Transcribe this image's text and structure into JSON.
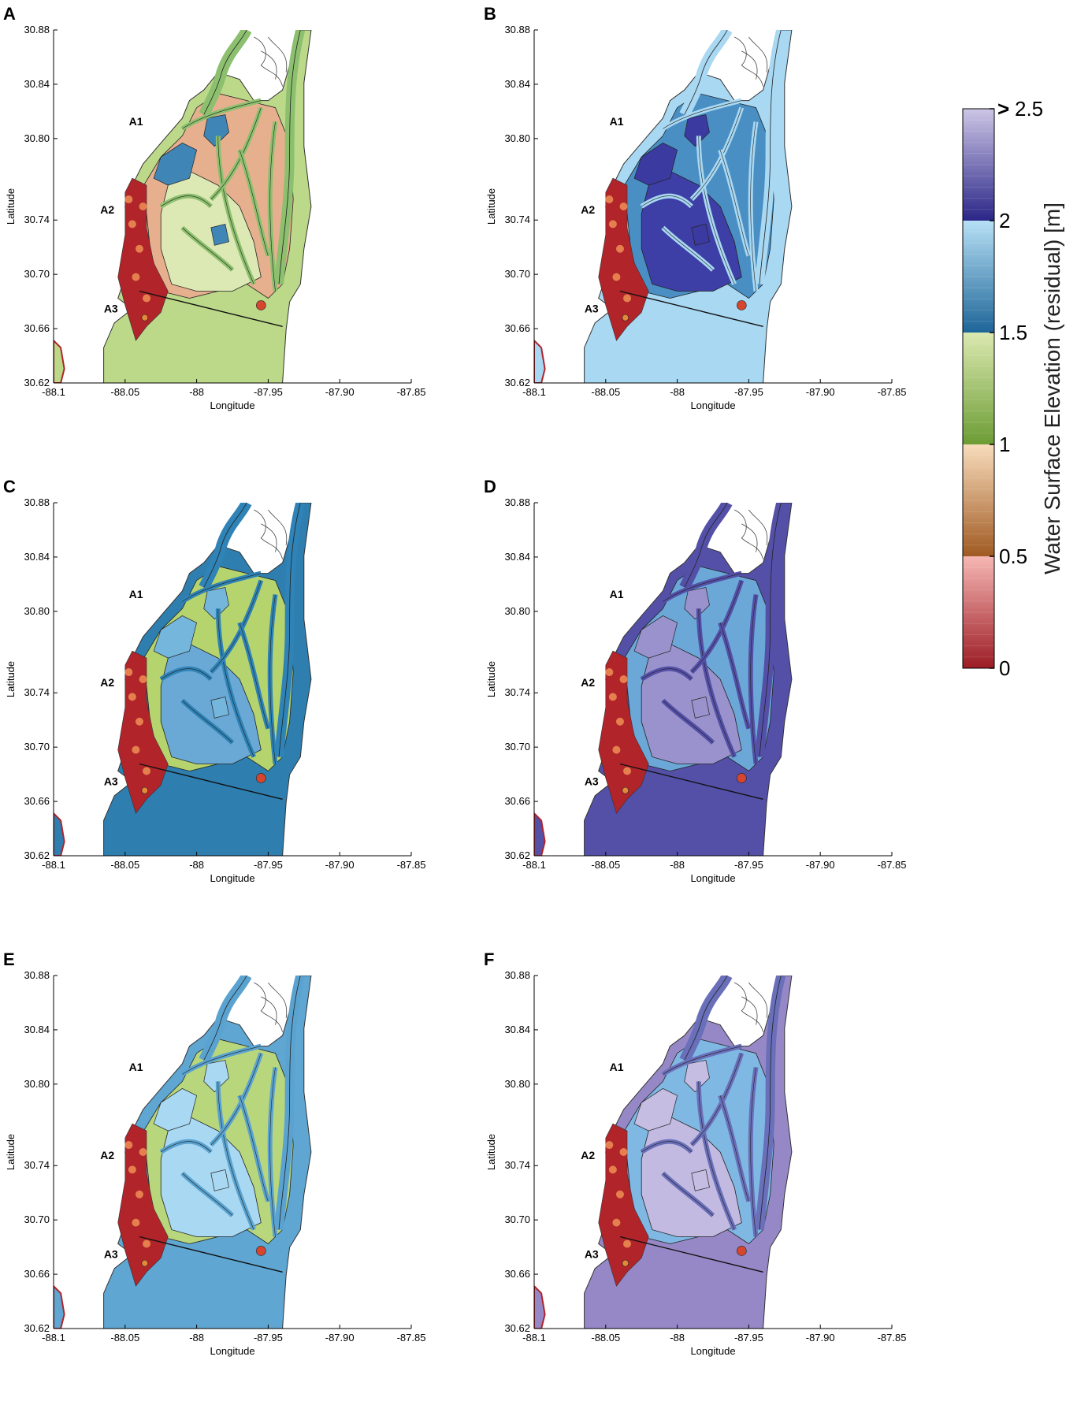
{
  "axes": {
    "xlabel": "Longitude",
    "ylabel": "Latitude",
    "xticks": [
      "-88.1",
      "-88.05",
      "-88",
      "-87.95",
      "-87.90",
      "-87.85"
    ],
    "yticks": [
      "30.88",
      "30.84",
      "30.80",
      "30.74",
      "30.70",
      "30.66",
      "30.62"
    ],
    "xlim": [
      -88.1,
      -87.85
    ],
    "ylim": [
      30.62,
      30.88
    ]
  },
  "site_labels": [
    "A1",
    "A2",
    "A3"
  ],
  "panels": [
    {
      "letter": "A",
      "water_color": "#bcd98a",
      "marsh_color": "#e6b08e",
      "channel_color": "#8cc06e",
      "pond_color": "#3f86b6",
      "inner_color": "#dde9b4"
    },
    {
      "letter": "B",
      "water_color": "#a9d8f2",
      "marsh_color": "#4a8fc4",
      "channel_color": "#a9d8f2",
      "pond_color": "#3b3aa0",
      "inner_color": "#3e3fa6"
    },
    {
      "letter": "C",
      "water_color": "#2e7fb0",
      "marsh_color": "#b6d46e",
      "channel_color": "#2f83b6",
      "pond_color": "#74b6dc",
      "inner_color": "#6aa9d6"
    },
    {
      "letter": "D",
      "water_color": "#5450a8",
      "marsh_color": "#6ba8d8",
      "channel_color": "#5450a8",
      "pond_color": "#9a92cc",
      "inner_color": "#9a92cc"
    },
    {
      "letter": "E",
      "water_color": "#5fa6d3",
      "marsh_color": "#b8d67c",
      "channel_color": "#5aa3d0",
      "pond_color": "#a9d8f2",
      "inner_color": "#a9d8f2"
    },
    {
      "letter": "F",
      "water_color": "#9688c6",
      "marsh_color": "#7fb8e3",
      "channel_color": "#6a6fba",
      "pond_color": "#c5bde2",
      "inner_color": "#c2bae0"
    }
  ],
  "colorbar": {
    "label": "Water Surface Elevation (residual) [m]",
    "ticks": [
      {
        "value": 0,
        "label": "0"
      },
      {
        "value": 0.5,
        "label": "0.5"
      },
      {
        "value": 1,
        "label": "1"
      },
      {
        "value": 1.5,
        "label": "1.5"
      },
      {
        "value": 2,
        "label": "2"
      },
      {
        "value": 2.5,
        "label": "2.5"
      }
    ],
    "max_marker": ">",
    "range": [
      0,
      2.5
    ],
    "segments": [
      {
        "from": 0,
        "to": 0.5,
        "bottom_color": "#9c1c24",
        "top_color": "#f6b7b4"
      },
      {
        "from": 0.5,
        "to": 1,
        "bottom_color": "#a05a22",
        "top_color": "#f8dcbc"
      },
      {
        "from": 1,
        "to": 1.5,
        "bottom_color": "#6c9c34",
        "top_color": "#dbe9b0"
      },
      {
        "from": 1.5,
        "to": 2,
        "bottom_color": "#1e6598",
        "top_color": "#b7e0f5"
      },
      {
        "from": 2,
        "to": 2.5,
        "bottom_color": "#2a2687",
        "top_color": "#cdc6e6"
      }
    ]
  }
}
